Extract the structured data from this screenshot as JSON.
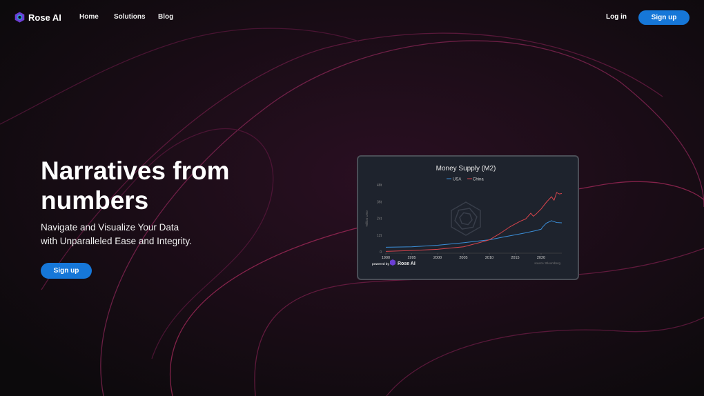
{
  "nav": {
    "brand": "Rose AI",
    "links": [
      "Home",
      "Solutions",
      "Blog"
    ],
    "login": "Log in",
    "signup": "Sign up"
  },
  "hero": {
    "title": "Narratives from numbers",
    "subtitle": "Navigate and Visualize Your Data with Unparalleled Ease and Integrity.",
    "cta": "Sign up"
  },
  "colors": {
    "accent": "#1677d8",
    "usa": "#3b8fd9",
    "china": "#d9444c",
    "background": "#0e0b0e"
  },
  "chart_data": {
    "type": "line",
    "title": "Money Supply (M2)",
    "ylabel": "Trillion USD",
    "xlabel": "",
    "ylim": [
      0,
      48
    ],
    "xlim": [
      1990,
      2024
    ],
    "yticks": [
      "0",
      "12t",
      "24t",
      "36t",
      "48t"
    ],
    "xticks": [
      "1990",
      "1995",
      "2000",
      "2005",
      "2010",
      "2015",
      "2020"
    ],
    "legend": "top-center",
    "grid": false,
    "source": "source: Bloomberg",
    "powered_by": "powered by",
    "brand": "Rose AI",
    "series": [
      {
        "name": "USA",
        "x": [
          1990,
          1995,
          2000,
          2005,
          2008,
          2010,
          2013,
          2015,
          2017,
          2019,
          2020,
          2020.3,
          2021,
          2022,
          2023,
          2024
        ],
        "y": [
          3.3,
          3.6,
          4.7,
          6.5,
          7.8,
          8.6,
          10.8,
          12.2,
          13.6,
          15.2,
          16.2,
          17.8,
          20.5,
          22.3,
          21.0,
          20.8
        ]
      },
      {
        "name": "China",
        "x": [
          1990,
          1995,
          2000,
          2005,
          2008,
          2010,
          2012,
          2014,
          2015,
          2016,
          2017,
          2018,
          2018.5,
          2019,
          2020,
          2021,
          2022,
          2022.5,
          2023,
          2023.5,
          2024
        ],
        "y": [
          0.3,
          0.9,
          1.8,
          3.6,
          6.5,
          8.6,
          13,
          18,
          20,
          22,
          23.5,
          27.7,
          25.5,
          27,
          30.7,
          35.5,
          39.5,
          37,
          42.5,
          41.5,
          41.8
        ]
      }
    ]
  }
}
